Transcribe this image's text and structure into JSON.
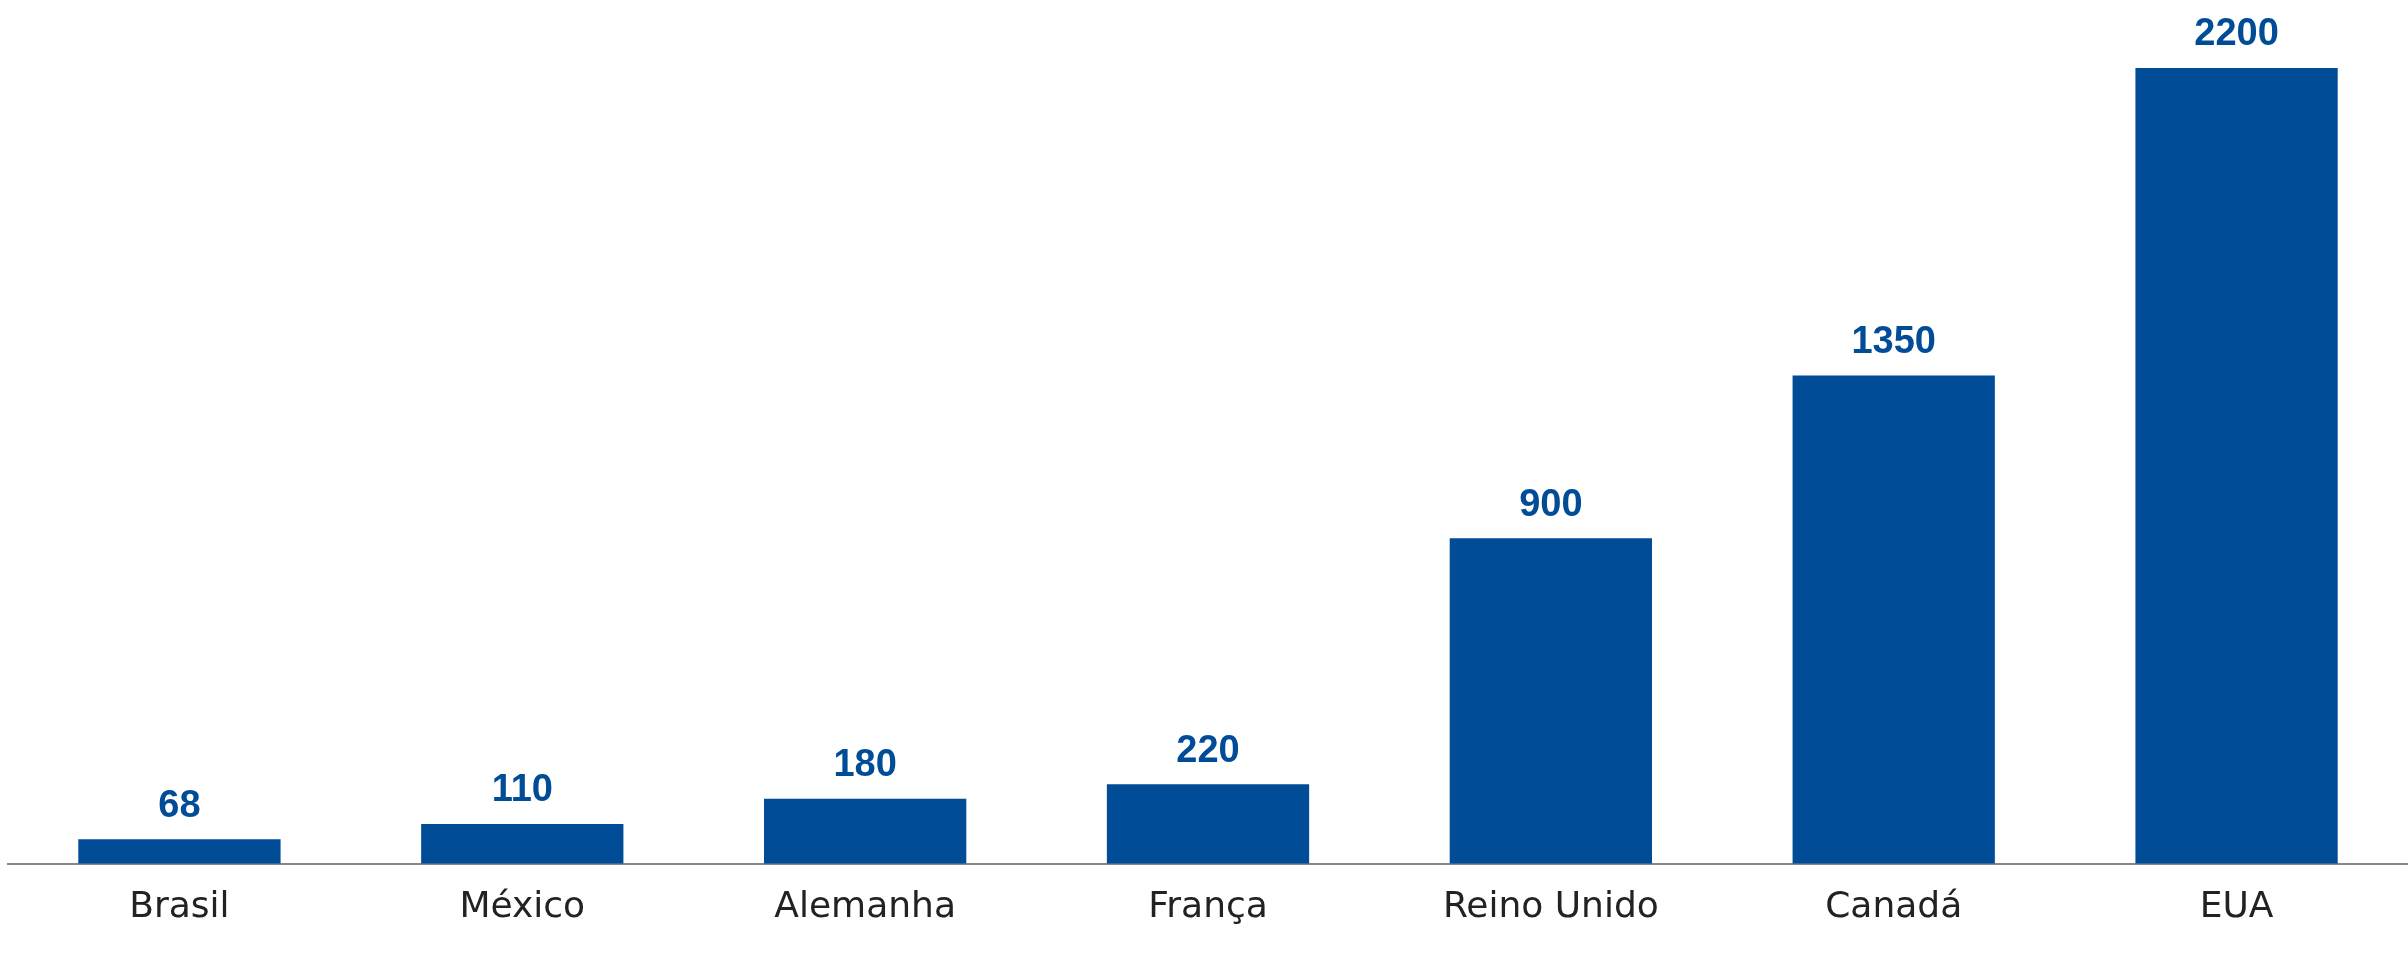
{
  "chart_data": {
    "type": "bar",
    "categories": [
      "Brasil",
      "México",
      "Alemanha",
      "França",
      "Reino Unido",
      "Canadá",
      "EUA"
    ],
    "values": [
      68,
      110,
      180,
      220,
      900,
      1350,
      2200
    ],
    "color": "#004c97",
    "data_labels": true,
    "grid": false,
    "legend": false
  }
}
